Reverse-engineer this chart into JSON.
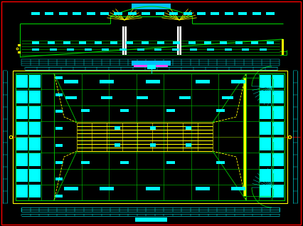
{
  "bg_color": "#000000",
  "cyan": "#00ffff",
  "green": "#00cc00",
  "yellow": "#ffff00",
  "magenta": "#ff44ff",
  "white": "#ffffff",
  "red": "#ff0000",
  "title_cyan": "#00bfff",
  "fig_w": 4.26,
  "fig_h": 3.17
}
